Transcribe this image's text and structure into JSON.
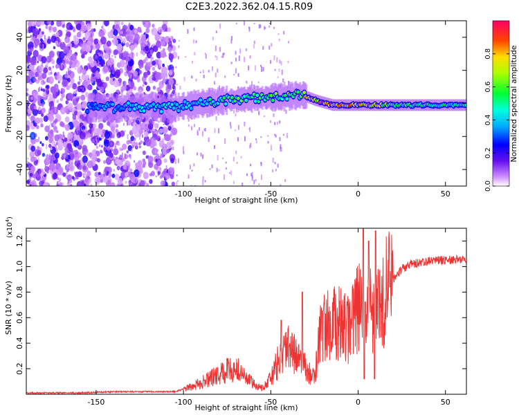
{
  "title": "C2E3.2022.362.04.15.R09",
  "chart_data": [
    {
      "type": "heatmap",
      "xlabel": "Height of straight line (km)",
      "ylabel": "Frequency (Hz)",
      "xlim": [
        -190,
        62
      ],
      "ylim": [
        -50,
        50
      ],
      "xticks": [
        "-150",
        "-100",
        "-50",
        "0",
        "50"
      ],
      "yticks": [
        "-40",
        "-20",
        "0",
        "20",
        "40"
      ],
      "colorbar": {
        "label": "Normalized spectral amplitude",
        "range": [
          0.0,
          1.0
        ],
        "ticks": [
          "0.0",
          "0.2",
          "0.4",
          "0.6",
          "0.8"
        ]
      },
      "ridge_frequency": [
        {
          "x": -150,
          "y": -3
        },
        {
          "x": -130,
          "y": -2
        },
        {
          "x": -110,
          "y": -3
        },
        {
          "x": -90,
          "y": 0
        },
        {
          "x": -75,
          "y": 2
        },
        {
          "x": -60,
          "y": 3
        },
        {
          "x": -45,
          "y": 4
        },
        {
          "x": -32,
          "y": 5
        },
        {
          "x": -25,
          "y": 2
        },
        {
          "x": -15,
          "y": -1
        },
        {
          "x": 0,
          "y": -1
        },
        {
          "x": 10,
          "y": -1
        },
        {
          "x": 30,
          "y": -1
        },
        {
          "x": 62,
          "y": -1
        }
      ],
      "ridge_amplitude": [
        {
          "x": -150,
          "y": 0.35
        },
        {
          "x": -130,
          "y": 0.45
        },
        {
          "x": -110,
          "y": 0.45
        },
        {
          "x": -90,
          "y": 0.5
        },
        {
          "x": -75,
          "y": 0.55
        },
        {
          "x": -60,
          "y": 0.6
        },
        {
          "x": -45,
          "y": 0.6
        },
        {
          "x": -30,
          "y": 0.7
        },
        {
          "x": -20,
          "y": 0.9
        },
        {
          "x": -10,
          "y": 0.9
        },
        {
          "x": 0,
          "y": 0.85
        },
        {
          "x": 10,
          "y": 0.75
        },
        {
          "x": 20,
          "y": 0.6
        },
        {
          "x": 40,
          "y": 0.55
        },
        {
          "x": 62,
          "y": 0.55
        }
      ]
    },
    {
      "type": "line",
      "xlabel": "Height of straight line (km)",
      "ylabel": "SNR (10 * v/v)",
      "y_multiplier": "(x10",
      "y_multiplier_exp": "4",
      "y_multiplier_close": ")",
      "xlim": [
        -190,
        62
      ],
      "ylim": [
        0,
        1.3
      ],
      "xticks": [
        "-150",
        "-100",
        "-50",
        "0",
        "50"
      ],
      "yticks": [
        "0.2",
        "0.4",
        "0.6",
        "0.8",
        "1.0",
        "1.2"
      ],
      "color": "#ee3333",
      "series": [
        {
          "points": [
            {
              "x": -190,
              "y": 0.01
            },
            {
              "x": -160,
              "y": 0.01
            },
            {
              "x": -140,
              "y": 0.02
            },
            {
              "x": -130,
              "y": 0.02
            },
            {
              "x": -120,
              "y": 0.02
            },
            {
              "x": -105,
              "y": 0.02
            },
            {
              "x": -95,
              "y": 0.06
            },
            {
              "x": -85,
              "y": 0.12
            },
            {
              "x": -75,
              "y": 0.18
            },
            {
              "x": -70,
              "y": 0.2
            },
            {
              "x": -65,
              "y": 0.14
            },
            {
              "x": -60,
              "y": 0.08
            },
            {
              "x": -55,
              "y": 0.05
            },
            {
              "x": -50,
              "y": 0.12
            },
            {
              "x": -45,
              "y": 0.28
            },
            {
              "x": -40,
              "y": 0.35
            },
            {
              "x": -35,
              "y": 0.3
            },
            {
              "x": -30,
              "y": 0.2
            },
            {
              "x": -25,
              "y": 0.12
            },
            {
              "x": -22,
              "y": 0.45
            },
            {
              "x": -18,
              "y": 0.55
            },
            {
              "x": -10,
              "y": 0.55
            },
            {
              "x": -5,
              "y": 0.5
            },
            {
              "x": 0,
              "y": 0.7
            },
            {
              "x": 5,
              "y": 0.6
            },
            {
              "x": 10,
              "y": 0.7
            },
            {
              "x": 15,
              "y": 0.78
            },
            {
              "x": 20,
              "y": 0.9
            },
            {
              "x": 25,
              "y": 0.98
            },
            {
              "x": 30,
              "y": 1.02
            },
            {
              "x": 40,
              "y": 1.04
            },
            {
              "x": 50,
              "y": 1.05
            },
            {
              "x": 62,
              "y": 1.06
            }
          ],
          "spikes": [
            {
              "x": -75,
              "y": 0.28
            },
            {
              "x": -44,
              "y": 0.58
            },
            {
              "x": -32,
              "y": 0.8
            },
            {
              "x": -20,
              "y": 0.65
            },
            {
              "x": 3,
              "y": 1.3
            },
            {
              "x": 6,
              "y": 1.2
            },
            {
              "x": 10,
              "y": 1.28
            }
          ]
        }
      ]
    }
  ]
}
